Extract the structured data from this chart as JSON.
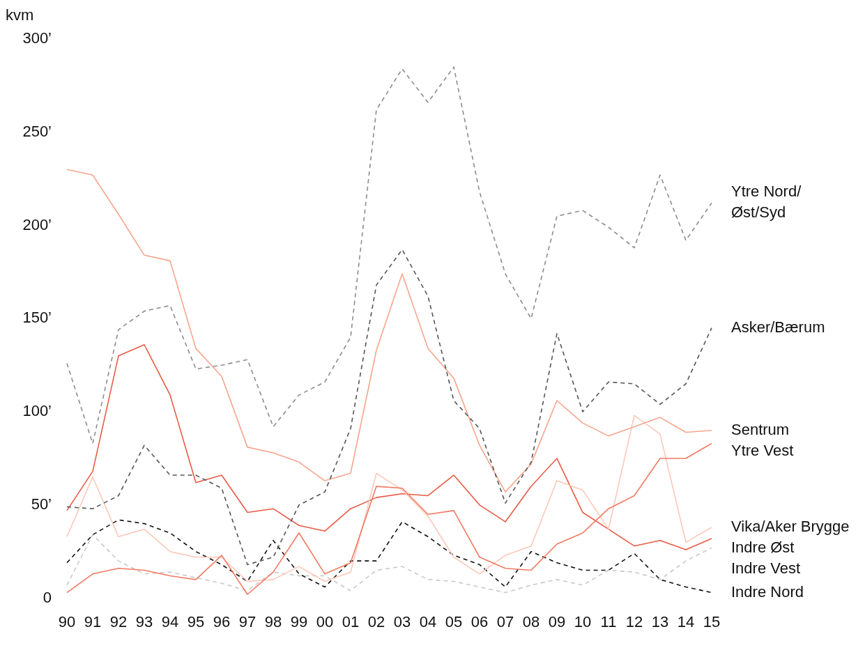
{
  "chart_data": {
    "type": "line",
    "ylabel": "kvm",
    "categories": [
      "90",
      "91",
      "92",
      "93",
      "94",
      "95",
      "96",
      "97",
      "98",
      "99",
      "00",
      "01",
      "02",
      "03",
      "04",
      "05",
      "06",
      "07",
      "08",
      "09",
      "10",
      "11",
      "12",
      "13",
      "14",
      "15"
    ],
    "ylim": [
      0,
      300
    ],
    "yticks": [
      0,
      {
        "value": 50,
        "label": "50’"
      },
      {
        "value": 100,
        "label": "100’"
      },
      {
        "value": 150,
        "label": "150’"
      },
      {
        "value": 200,
        "label": "200’"
      },
      {
        "value": 250,
        "label": "250’"
      },
      {
        "value": 300,
        "label": "300’"
      }
    ],
    "grid": false,
    "legend": false,
    "marker": "none",
    "series": [
      {
        "name": "Ytre Nord/Øst/Syd",
        "color": "#8c8c8c",
        "line_style": "dashed",
        "values": [
          126,
          83,
          144,
          154,
          157,
          123,
          125,
          128,
          92,
          109,
          116,
          140,
          262,
          284,
          266,
          285,
          218,
          174,
          150,
          205,
          208,
          199,
          188,
          227,
          192,
          212
        ]
      },
      {
        "name": "Asker/Bærum",
        "color": "#555555",
        "line_style": "dashed",
        "values": [
          49,
          48,
          55,
          82,
          66,
          66,
          59,
          18,
          22,
          50,
          57,
          91,
          168,
          187,
          162,
          106,
          91,
          51,
          73,
          142,
          100,
          116,
          115,
          104,
          115,
          145
        ]
      },
      {
        "name": "Sentrum",
        "color": "#f7a58c",
        "line_style": "solid",
        "values": [
          230,
          227,
          206,
          184,
          181,
          134,
          119,
          81,
          78,
          73,
          63,
          67,
          133,
          174,
          134,
          118,
          82,
          57,
          72,
          106,
          94,
          87,
          92,
          97,
          89,
          90
        ]
      },
      {
        "name": "Ytre Vest",
        "color": "#f27a62",
        "line_style": "solid",
        "values": [
          3,
          13,
          16,
          15,
          12,
          10,
          23,
          2,
          14,
          35,
          13,
          19,
          60,
          59,
          45,
          47,
          22,
          16,
          15,
          29,
          35,
          48,
          55,
          75,
          75,
          83
        ]
      },
      {
        "name": "Vika/Aker Brygge",
        "color": "#fcc8b8",
        "line_style": "solid",
        "values": [
          33,
          65,
          33,
          37,
          25,
          22,
          22,
          9,
          10,
          17,
          9,
          14,
          67,
          58,
          44,
          22,
          13,
          23,
          28,
          63,
          58,
          37,
          98,
          88,
          30,
          38
        ]
      },
      {
        "name": "Indre Øst",
        "color": "#ea5a45",
        "line_style": "solid",
        "values": [
          47,
          68,
          130,
          136,
          109,
          62,
          66,
          46,
          48,
          39,
          36,
          48,
          54,
          56,
          55,
          66,
          50,
          41,
          60,
          75,
          46,
          37,
          28,
          31,
          26,
          32
        ]
      },
      {
        "name": "Indre Vest",
        "color": "#c8c8c8",
        "line_style": "dashed",
        "values": [
          7,
          34,
          20,
          13,
          14,
          11,
          8,
          4,
          14,
          12,
          12,
          4,
          15,
          17,
          10,
          9,
          6,
          3,
          7,
          10,
          7,
          15,
          14,
          10,
          20,
          27
        ]
      },
      {
        "name": "Indre Nord",
        "color": "#111111",
        "line_style": "dashed",
        "values": [
          19,
          34,
          42,
          40,
          35,
          25,
          18,
          9,
          31,
          13,
          6,
          20,
          20,
          41,
          33,
          23,
          18,
          6,
          25,
          19,
          15,
          15,
          24,
          10,
          6,
          3
        ]
      }
    ]
  }
}
